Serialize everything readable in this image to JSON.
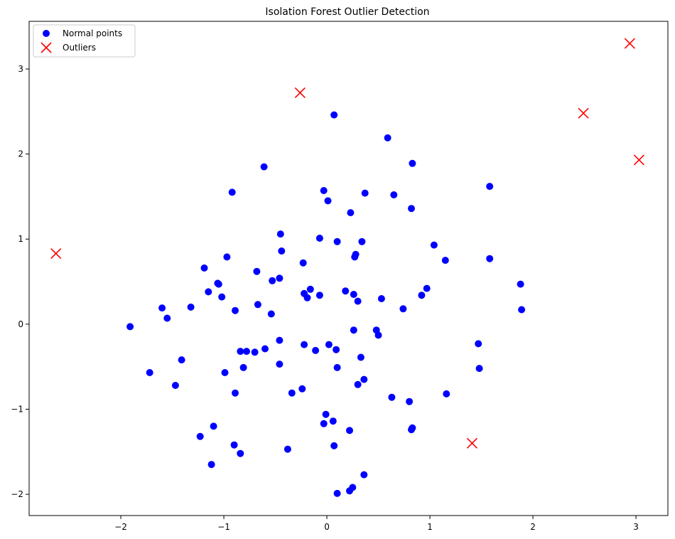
{
  "chart_data": {
    "type": "scatter",
    "title": "Isolation Forest Outlier Detection",
    "xlabel": "",
    "ylabel": "",
    "xlim": [
      -2.89,
      3.31
    ],
    "ylim": [
      -2.25,
      3.56
    ],
    "xticks": [
      -2,
      -1,
      0,
      1,
      2,
      3
    ],
    "yticks": [
      -2,
      -1,
      0,
      1,
      2,
      3
    ],
    "grid": false,
    "legend": {
      "placement": "upper-left"
    },
    "series": [
      {
        "name": "Normal points",
        "marker": "circle",
        "color": "#0000ff",
        "points": [
          [
            0.07,
            2.46
          ],
          [
            0.59,
            2.19
          ],
          [
            0.83,
            1.89
          ],
          [
            -0.61,
            1.85
          ],
          [
            -0.92,
            1.55
          ],
          [
            -0.03,
            1.57
          ],
          [
            0.37,
            1.54
          ],
          [
            0.65,
            1.52
          ],
          [
            1.58,
            1.62
          ],
          [
            0.01,
            1.45
          ],
          [
            0.23,
            1.31
          ],
          [
            0.82,
            1.36
          ],
          [
            -0.45,
            1.06
          ],
          [
            -0.07,
            1.01
          ],
          [
            0.1,
            0.97
          ],
          [
            0.34,
            0.97
          ],
          [
            1.04,
            0.93
          ],
          [
            -0.44,
            0.86
          ],
          [
            0.28,
            0.82
          ],
          [
            0.27,
            0.79
          ],
          [
            -0.97,
            0.79
          ],
          [
            1.15,
            0.75
          ],
          [
            1.58,
            0.77
          ],
          [
            -1.19,
            0.66
          ],
          [
            -0.23,
            0.72
          ],
          [
            -0.68,
            0.62
          ],
          [
            -0.46,
            0.54
          ],
          [
            -0.53,
            0.51
          ],
          [
            -1.06,
            0.48
          ],
          [
            -1.05,
            0.47
          ],
          [
            1.88,
            0.47
          ],
          [
            0.97,
            0.42
          ],
          [
            -1.15,
            0.38
          ],
          [
            -0.16,
            0.41
          ],
          [
            0.18,
            0.39
          ],
          [
            -0.22,
            0.36
          ],
          [
            -1.02,
            0.32
          ],
          [
            -0.07,
            0.34
          ],
          [
            0.26,
            0.35
          ],
          [
            0.92,
            0.34
          ],
          [
            -0.19,
            0.31
          ],
          [
            0.53,
            0.3
          ],
          [
            0.3,
            0.27
          ],
          [
            -0.67,
            0.23
          ],
          [
            -1.32,
            0.2
          ],
          [
            -1.6,
            0.19
          ],
          [
            -0.89,
            0.16
          ],
          [
            0.74,
            0.18
          ],
          [
            1.89,
            0.17
          ],
          [
            -0.54,
            0.12
          ],
          [
            -1.55,
            0.07
          ],
          [
            -1.91,
            -0.03
          ],
          [
            0.48,
            -0.07
          ],
          [
            0.26,
            -0.07
          ],
          [
            0.5,
            -0.13
          ],
          [
            1.47,
            -0.23
          ],
          [
            -0.46,
            -0.19
          ],
          [
            -0.22,
            -0.24
          ],
          [
            0.02,
            -0.24
          ],
          [
            -0.6,
            -0.29
          ],
          [
            -0.84,
            -0.32
          ],
          [
            -0.78,
            -0.32
          ],
          [
            -0.7,
            -0.33
          ],
          [
            -0.11,
            -0.31
          ],
          [
            0.09,
            -0.3
          ],
          [
            0.33,
            -0.39
          ],
          [
            -1.41,
            -0.42
          ],
          [
            -0.46,
            -0.47
          ],
          [
            -0.81,
            -0.51
          ],
          [
            0.1,
            -0.51
          ],
          [
            1.48,
            -0.52
          ],
          [
            -0.99,
            -0.57
          ],
          [
            -1.72,
            -0.57
          ],
          [
            -1.47,
            -0.72
          ],
          [
            0.36,
            -0.65
          ],
          [
            0.3,
            -0.71
          ],
          [
            -0.24,
            -0.76
          ],
          [
            -0.34,
            -0.81
          ],
          [
            -0.89,
            -0.81
          ],
          [
            1.16,
            -0.82
          ],
          [
            0.63,
            -0.86
          ],
          [
            0.8,
            -0.91
          ],
          [
            -0.01,
            -1.06
          ],
          [
            0.06,
            -1.14
          ],
          [
            -0.03,
            -1.17
          ],
          [
            -1.1,
            -1.2
          ],
          [
            0.83,
            -1.22
          ],
          [
            0.82,
            -1.24
          ],
          [
            0.22,
            -1.25
          ],
          [
            -1.23,
            -1.32
          ],
          [
            -0.9,
            -1.42
          ],
          [
            0.07,
            -1.43
          ],
          [
            -0.38,
            -1.47
          ],
          [
            -0.84,
            -1.52
          ],
          [
            -1.12,
            -1.65
          ],
          [
            0.36,
            -1.77
          ],
          [
            0.25,
            -1.92
          ],
          [
            0.22,
            -1.96
          ],
          [
            0.1,
            -1.99
          ]
        ]
      },
      {
        "name": "Outliers",
        "marker": "x",
        "color": "#ff0000",
        "points": [
          [
            2.94,
            3.3
          ],
          [
            -0.26,
            2.72
          ],
          [
            2.49,
            2.48
          ],
          [
            3.03,
            1.93
          ],
          [
            -2.63,
            0.83
          ],
          [
            1.41,
            -1.4
          ]
        ]
      }
    ]
  }
}
